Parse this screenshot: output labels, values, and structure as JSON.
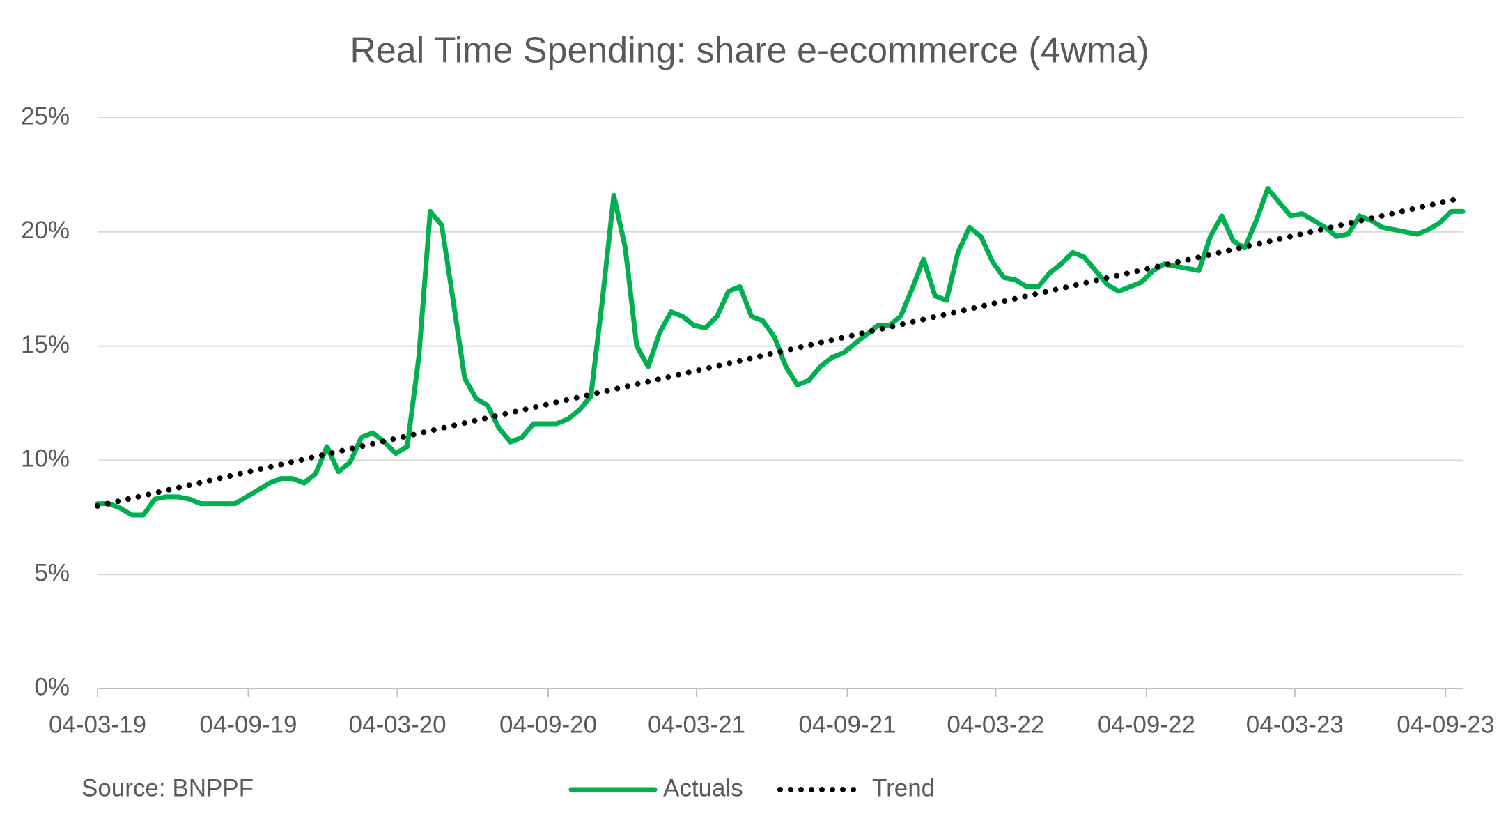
{
  "chart_data": {
    "type": "line",
    "title": "Real Time Spending: share e-ecommerce (4wma)",
    "source": "Source: BNPPF",
    "ylim": [
      0,
      25
    ],
    "yticks": [
      {
        "value": 0,
        "label": "0%"
      },
      {
        "value": 5,
        "label": "5%"
      },
      {
        "value": 10,
        "label": "10%"
      },
      {
        "value": 15,
        "label": "15%"
      },
      {
        "value": 20,
        "label": "20%"
      },
      {
        "value": 25,
        "label": "25%"
      }
    ],
    "xlim": [
      "04-03-19",
      "25-09-23"
    ],
    "xticks": [
      "04-03-19",
      "04-09-19",
      "04-03-20",
      "04-09-20",
      "04-03-21",
      "04-09-21",
      "04-03-22",
      "04-09-22",
      "04-03-23",
      "04-09-23"
    ],
    "grid": true,
    "legend": "bottom",
    "series": [
      {
        "name": "Actuals",
        "color": "#00b050",
        "style": "solid",
        "x": [
          "04-03-19",
          "18-03-19",
          "01-04-19",
          "15-04-19",
          "29-04-19",
          "13-05-19",
          "27-05-19",
          "10-06-19",
          "24-06-19",
          "08-07-19",
          "22-07-19",
          "05-08-19",
          "19-08-19",
          "02-09-19",
          "16-09-19",
          "30-09-19",
          "14-10-19",
          "28-10-19",
          "11-11-19",
          "25-11-19",
          "09-12-19",
          "23-12-19",
          "06-01-20",
          "20-01-20",
          "03-02-20",
          "17-02-20",
          "02-03-20",
          "16-03-20",
          "30-03-20",
          "13-04-20",
          "27-04-20",
          "11-05-20",
          "25-05-20",
          "08-06-20",
          "22-06-20",
          "06-07-20",
          "20-07-20",
          "03-08-20",
          "17-08-20",
          "31-08-20",
          "14-09-20",
          "28-09-20",
          "12-10-20",
          "26-10-20",
          "09-11-20",
          "23-11-20",
          "07-12-20",
          "21-12-20",
          "04-01-21",
          "18-01-21",
          "01-02-21",
          "15-02-21",
          "01-03-21",
          "15-03-21",
          "29-03-21",
          "12-04-21",
          "26-04-21",
          "10-05-21",
          "24-05-21",
          "07-06-21",
          "21-06-21",
          "05-07-21",
          "19-07-21",
          "02-08-21",
          "16-08-21",
          "30-08-21",
          "13-09-21",
          "27-09-21",
          "11-10-21",
          "25-10-21",
          "08-11-21",
          "22-11-21",
          "06-12-21",
          "20-12-21",
          "03-01-22",
          "17-01-22",
          "31-01-22",
          "14-02-22",
          "28-02-22",
          "14-03-22",
          "28-03-22",
          "11-04-22",
          "25-04-22",
          "09-05-22",
          "23-05-22",
          "06-06-22",
          "20-06-22",
          "04-07-22",
          "18-07-22",
          "01-08-22",
          "15-08-22",
          "29-08-22",
          "12-09-22",
          "26-09-22",
          "10-10-22",
          "24-10-22",
          "07-11-22",
          "21-11-22",
          "05-12-22",
          "19-12-22",
          "02-01-23",
          "16-01-23",
          "30-01-23",
          "13-02-23",
          "27-02-23",
          "13-03-23",
          "27-03-23",
          "10-04-23",
          "24-04-23",
          "08-05-23",
          "22-05-23",
          "05-06-23",
          "19-06-23",
          "03-07-23",
          "17-07-23",
          "31-07-23",
          "14-08-23",
          "28-08-23",
          "11-09-23",
          "25-09-23"
        ],
        "values": [
          8.1,
          8.1,
          7.9,
          7.6,
          7.6,
          8.3,
          8.4,
          8.4,
          8.3,
          8.1,
          8.1,
          8.1,
          8.1,
          8.4,
          8.7,
          9.0,
          9.2,
          9.2,
          9.0,
          9.4,
          10.6,
          9.5,
          9.9,
          11.0,
          11.2,
          10.8,
          10.3,
          10.6,
          14.5,
          20.9,
          20.3,
          17.0,
          13.6,
          12.7,
          12.4,
          11.4,
          10.8,
          11.0,
          11.6,
          11.6,
          11.6,
          11.8,
          12.2,
          12.8,
          17.0,
          21.6,
          19.3,
          15.0,
          14.1,
          15.6,
          16.5,
          16.3,
          15.9,
          15.8,
          16.3,
          17.4,
          17.6,
          16.3,
          16.1,
          15.4,
          14.1,
          13.3,
          13.5,
          14.1,
          14.5,
          14.7,
          15.1,
          15.5,
          15.9,
          15.9,
          16.3,
          17.5,
          18.8,
          17.2,
          17.0,
          19.1,
          20.2,
          19.8,
          18.7,
          18.0,
          17.9,
          17.6,
          17.6,
          18.2,
          18.6,
          19.1,
          18.9,
          18.3,
          17.7,
          17.4,
          17.6,
          17.8,
          18.3,
          18.6,
          18.5,
          18.4,
          18.3,
          19.8,
          20.7,
          19.6,
          19.3,
          20.5,
          21.9,
          21.3,
          20.7,
          20.8,
          20.5,
          20.2,
          19.8,
          19.9,
          20.7,
          20.5,
          20.2,
          20.1,
          20.0,
          19.9,
          20.1,
          20.4,
          20.9,
          20.9
        ]
      },
      {
        "name": "Trend",
        "color": "#000000",
        "style": "dotted",
        "x": [
          "04-03-19",
          "25-09-23"
        ],
        "values": [
          8.0,
          21.5
        ]
      }
    ]
  }
}
